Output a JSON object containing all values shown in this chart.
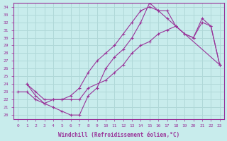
{
  "xlabel": "Windchill (Refroidissement éolien,°C)",
  "bg_color": "#c8ecec",
  "line_color": "#993399",
  "grid_color": "#b0d8d8",
  "xlim": [
    -0.5,
    23.5
  ],
  "ylim": [
    19.5,
    34.5
  ],
  "xticks": [
    0,
    1,
    2,
    3,
    4,
    5,
    6,
    7,
    8,
    9,
    10,
    11,
    12,
    13,
    14,
    15,
    16,
    17,
    18,
    19,
    20,
    21,
    22,
    23
  ],
  "yticks": [
    20,
    21,
    22,
    23,
    24,
    25,
    26,
    27,
    28,
    29,
    30,
    31,
    32,
    33,
    34
  ],
  "line1_x": [
    1,
    2,
    3,
    4,
    5,
    6,
    7,
    8,
    10,
    11,
    12,
    13,
    14,
    15,
    16,
    17,
    18,
    23
  ],
  "line1_y": [
    24.0,
    23.0,
    22.0,
    22.0,
    22.0,
    22.0,
    22.0,
    23.5,
    24.5,
    25.5,
    26.5,
    28.0,
    29.0,
    29.5,
    30.5,
    31.0,
    31.5,
    26.5
  ],
  "line2_x": [
    0,
    1,
    2,
    3,
    4,
    5,
    6,
    7,
    8,
    9,
    10,
    11,
    12,
    13,
    14,
    15,
    16,
    17,
    18,
    19,
    20,
    21,
    22,
    23
  ],
  "line2_y": [
    23.0,
    23.0,
    22.0,
    21.5,
    22.0,
    22.0,
    22.5,
    23.5,
    25.5,
    27.0,
    28.0,
    29.0,
    30.5,
    32.0,
    33.5,
    34.0,
    33.5,
    32.5,
    31.5,
    30.5,
    30.0,
    32.0,
    31.5,
    26.5
  ],
  "line3_x": [
    1,
    2,
    3,
    4,
    5,
    6,
    7,
    8,
    9,
    10,
    11,
    12,
    13,
    14,
    15,
    16,
    17,
    18,
    19,
    20,
    21,
    22,
    23
  ],
  "line3_y": [
    24.0,
    22.5,
    21.5,
    21.0,
    20.5,
    20.0,
    20.0,
    22.5,
    23.5,
    26.0,
    27.5,
    28.5,
    30.0,
    32.0,
    34.5,
    33.5,
    33.5,
    31.5,
    30.5,
    30.0,
    32.5,
    31.5,
    26.5
  ]
}
